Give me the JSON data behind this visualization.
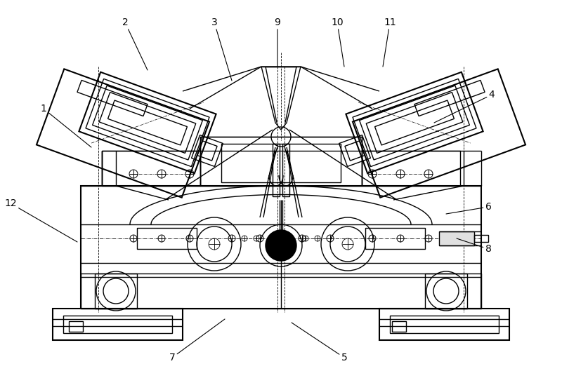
{
  "bg_color": "#ffffff",
  "line_color": "#000000",
  "lw": 1.0,
  "lw_thick": 1.5,
  "lw_thin": 0.6,
  "label_fontsize": 10,
  "label_data": [
    [
      "1",
      62,
      155,
      130,
      210
    ],
    [
      "2",
      178,
      32,
      210,
      100
    ],
    [
      "3",
      305,
      32,
      330,
      115
    ],
    [
      "4",
      700,
      135,
      618,
      175
    ],
    [
      "5",
      490,
      510,
      415,
      460
    ],
    [
      "6",
      695,
      295,
      635,
      305
    ],
    [
      "7",
      245,
      510,
      320,
      455
    ],
    [
      "8",
      695,
      355,
      650,
      340
    ],
    [
      "9",
      395,
      32,
      395,
      95
    ],
    [
      "10",
      480,
      32,
      490,
      95
    ],
    [
      "11",
      555,
      32,
      545,
      95
    ],
    [
      "12",
      15,
      290,
      110,
      345
    ]
  ]
}
